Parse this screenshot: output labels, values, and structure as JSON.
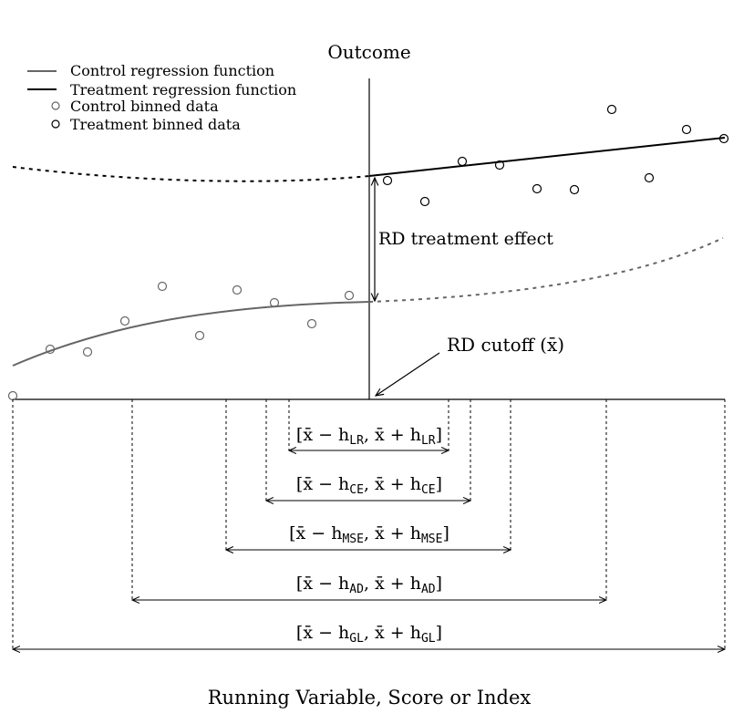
{
  "title": "Outcome",
  "xlabel": "Running Variable, Score or Index",
  "legend": {
    "items": [
      {
        "label": "Control regression function",
        "marker": "line",
        "color": "#666666"
      },
      {
        "label": "Treatment regression function",
        "marker": "line",
        "color": "#000000"
      },
      {
        "label": "Control binned data",
        "marker": "circle",
        "color": "#666666"
      },
      {
        "label": "Treatment binned data",
        "marker": "circle",
        "color": "#000000"
      }
    ]
  },
  "annotations": {
    "effect": "RD treatment effect",
    "cutoff": "RD cutoff (x̄)"
  },
  "intervals": [
    {
      "lo": "[x̄ − h",
      "sub1": "LR",
      "mid": ", x̄ + h",
      "sub2": "LR",
      "hi": "]"
    },
    {
      "lo": "[x̄ − h",
      "sub1": "CE",
      "mid": ", x̄ + h",
      "sub2": "CE",
      "hi": "]"
    },
    {
      "lo": "[x̄ − h",
      "sub1": "MSE",
      "mid": ", x̄ + h",
      "sub2": "MSE",
      "hi": "]"
    },
    {
      "lo": "[x̄ − h",
      "sub1": "AD",
      "mid": ", x̄ + h",
      "sub2": "AD",
      "hi": "]"
    },
    {
      "lo": "[x̄ − h",
      "sub1": "GL",
      "mid": ", x̄ + h",
      "sub2": "GL",
      "hi": "]"
    }
  ],
  "colors": {
    "control": "#666666",
    "treatment": "#000000"
  }
}
